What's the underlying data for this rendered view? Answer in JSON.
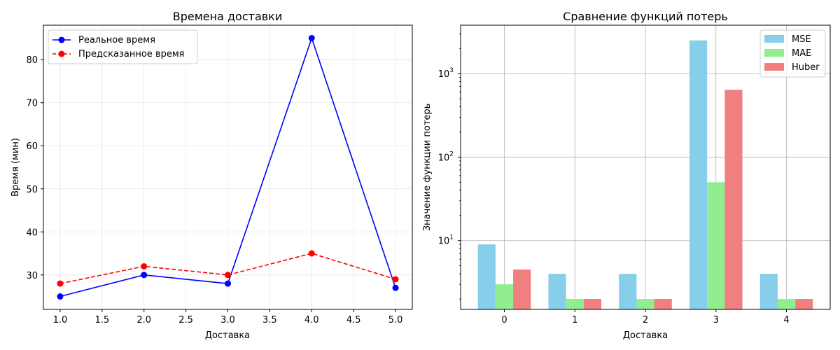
{
  "chart_data": [
    {
      "type": "line",
      "title": "Времена доставки",
      "xlabel": "Доставка",
      "ylabel": "Время (мин)",
      "x": [
        1.0,
        2.0,
        3.0,
        4.0,
        5.0
      ],
      "xlim": [
        0.8,
        5.2
      ],
      "ylim": [
        22,
        88
      ],
      "xticks": [
        "1.0",
        "1.5",
        "2.0",
        "2.5",
        "3.0",
        "3.5",
        "4.0",
        "4.5",
        "5.0"
      ],
      "yticks": [
        "30",
        "40",
        "50",
        "60",
        "70",
        "80"
      ],
      "grid": true,
      "legend_position": "top-left",
      "series": [
        {
          "name": "Реальное время",
          "values": [
            25,
            30,
            28,
            85,
            27
          ],
          "color": "#0000ff",
          "line": "solid",
          "marker": "circle"
        },
        {
          "name": "Предсказанное время",
          "values": [
            28,
            32,
            30,
            35,
            29
          ],
          "color": "#ff0000",
          "line": "dashed",
          "marker": "circle"
        }
      ]
    },
    {
      "type": "bar",
      "title": "Сравнение функций потерь",
      "xlabel": "Доставка",
      "ylabel": "Значение функции потерь",
      "categories": [
        "0",
        "1",
        "2",
        "3",
        "4"
      ],
      "yscale": "log",
      "ylim": [
        1.5,
        3800
      ],
      "yticks": [
        {
          "value": 10,
          "base": "10",
          "exp": "1"
        },
        {
          "value": 100,
          "base": "10",
          "exp": "2"
        },
        {
          "value": 1000,
          "base": "10",
          "exp": "3"
        }
      ],
      "grid": true,
      "legend_position": "top-right",
      "series": [
        {
          "name": "MSE",
          "values": [
            9,
            4,
            4,
            2500,
            4
          ],
          "color": "#87ceeb"
        },
        {
          "name": "MAE",
          "values": [
            3,
            2,
            2,
            50,
            2
          ],
          "color": "#90ee90"
        },
        {
          "name": "Huber",
          "values": [
            4.5,
            2,
            2,
            640,
            2
          ],
          "color": "#f08080"
        }
      ]
    }
  ]
}
